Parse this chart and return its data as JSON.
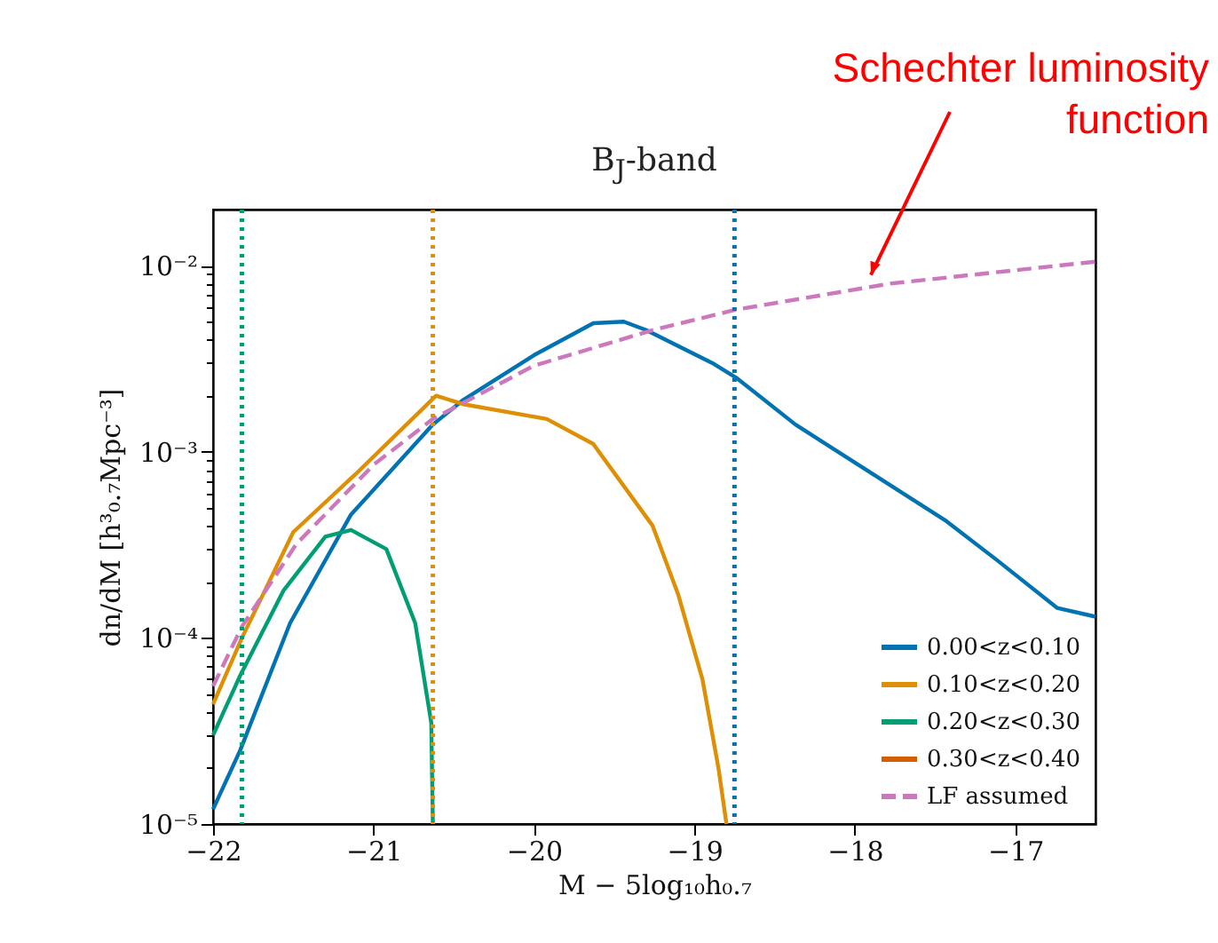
{
  "chart_data": {
    "type": "line",
    "title": "B$_{J}$-band",
    "xlabel": "M − 5log₁₀h₀.₇",
    "ylabel": "dn/dM [h³₀.₇Mpc⁻³]",
    "log": "y",
    "grid": false,
    "legend": "bottom right",
    "marker": "none",
    "xlim": [
      -22,
      -16.5
    ],
    "xticks": [
      -22,
      -21,
      -20,
      -19,
      -18,
      -17
    ],
    "ylim": [
      1e-05,
      0.02
    ],
    "yticks": [
      {
        "value": 1e-05,
        "label": "10⁻⁵"
      },
      {
        "value": 2e-05,
        "label": null
      },
      {
        "value": 3e-05,
        "label": null
      },
      {
        "value": 4e-05,
        "label": null
      },
      {
        "value": 5e-05,
        "label": null
      },
      {
        "value": 6e-05,
        "label": null
      },
      {
        "value": 7e-05,
        "label": null
      },
      {
        "value": 8e-05,
        "label": null
      },
      {
        "value": 9e-05,
        "label": null
      },
      {
        "value": 0.0001,
        "label": "10⁻⁴"
      },
      {
        "value": 0.0002,
        "label": null
      },
      {
        "value": 0.0003,
        "label": null
      },
      {
        "value": 0.0004,
        "label": null
      },
      {
        "value": 0.0005,
        "label": null
      },
      {
        "value": 0.0006,
        "label": null
      },
      {
        "value": 0.0007,
        "label": null
      },
      {
        "value": 0.0008,
        "label": null
      },
      {
        "value": 0.0009,
        "label": null
      },
      {
        "value": 0.001,
        "label": "10⁻³"
      },
      {
        "value": 0.002,
        "label": null
      },
      {
        "value": 0.003,
        "label": null
      },
      {
        "value": 0.004,
        "label": null
      },
      {
        "value": 0.005,
        "label": null
      },
      {
        "value": 0.006,
        "label": null
      },
      {
        "value": 0.007,
        "label": null
      },
      {
        "value": 0.008,
        "label": null
      },
      {
        "value": 0.009,
        "label": null
      },
      {
        "value": 0.01,
        "label": "10⁻²"
      }
    ],
    "series": [
      {
        "name": "0.00<z<0.10",
        "color": "#0173b2",
        "line_style": "solid",
        "x": [
          -22,
          -21.83,
          -21.52,
          -21.14,
          -20.63,
          -20.44,
          -20.0,
          -19.63,
          -19.44,
          -19.3,
          -18.89,
          -18.74,
          -18.37,
          -17.89,
          -17.44,
          -17.11,
          -16.74,
          -16.5
        ],
        "values": [
          1.2e-05,
          2.5e-05,
          0.00012,
          0.00046,
          0.0014,
          0.0019,
          0.0033,
          0.0049,
          0.005,
          0.0045,
          0.003,
          0.0025,
          0.0014,
          0.00076,
          0.00043,
          0.00026,
          0.000145,
          0.00013
        ]
      },
      {
        "name": "0.10<z<0.20",
        "color": "#de8f05",
        "line_style": "solid",
        "x": [
          -22,
          -21.82,
          -21.5,
          -21.11,
          -20.61,
          -20.44,
          -19.92,
          -19.63,
          -19.26,
          -19.1,
          -18.95,
          -18.85,
          -18.8
        ],
        "values": [
          4.4e-05,
          0.0001,
          0.00037,
          0.00076,
          0.002,
          0.0018,
          0.0015,
          0.0011,
          0.0004,
          0.00017,
          6e-05,
          2e-05,
          1e-05
        ]
      },
      {
        "name": "0.20<z<0.30",
        "color": "#029e73",
        "line_style": "solid",
        "x": [
          -22,
          -21.83,
          -21.56,
          -21.3,
          -21.14,
          -20.92,
          -20.74,
          -20.64,
          -20.63
        ],
        "values": [
          3e-05,
          6.3e-05,
          0.00018,
          0.00035,
          0.00038,
          0.0003,
          0.00012,
          3.5e-05,
          1e-05
        ]
      },
      {
        "name": "0.30<z<0.40",
        "color": "#d55e00",
        "line_style": "solid"
      },
      {
        "name": "LF assumed",
        "color": "#cc78bc",
        "line_style": "dashed",
        "x": [
          -22,
          -21.82,
          -21.48,
          -21.0,
          -20.63,
          -20.0,
          -19.26,
          -18.74,
          -17.78,
          -16.5
        ],
        "values": [
          5.5e-05,
          0.000115,
          0.00032,
          0.00085,
          0.0015,
          0.0029,
          0.0045,
          0.0058,
          0.008,
          0.0105
        ]
      }
    ],
    "ref_lines": [
      {
        "axis": "x",
        "value": -21.82,
        "color": "#029e73",
        "line_style": "dotted"
      },
      {
        "axis": "x",
        "value": -20.63,
        "color": "#de8f05",
        "line_style": "dotted"
      },
      {
        "axis": "x",
        "value": -18.75,
        "color": "#0173b2",
        "line_style": "dotted"
      }
    ],
    "annotations": [
      {
        "text": "Schechter luminosity\nfunction",
        "x": -17.9,
        "y": 0.0089
      }
    ]
  }
}
